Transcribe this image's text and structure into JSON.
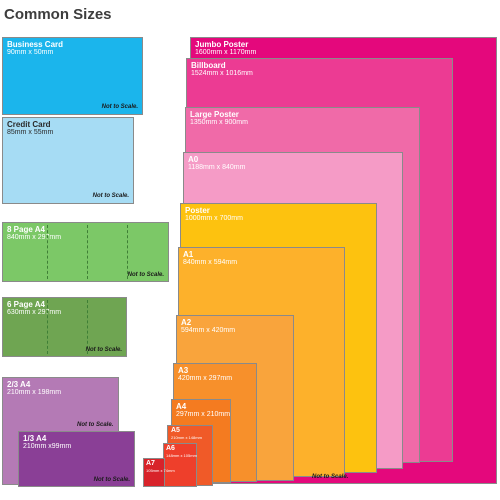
{
  "page_title": "Common Sizes",
  "not_to_scale": "Not to Scale.",
  "left_column": [
    {
      "key": "business_card",
      "name": "Business Card",
      "dims": "90mm x 50mm",
      "color": "#1bb5ec"
    },
    {
      "key": "credit_card",
      "name": "Credit Card",
      "dims": "85mm x 55mm",
      "color": "#a6dcf4"
    },
    {
      "key": "eight_page_a4",
      "name": "8 Page A4",
      "dims": "840mm x 297mm",
      "color": "#7cc867"
    },
    {
      "key": "six_page_a4",
      "name": "6 Page A4",
      "dims": "630mm x 297mm",
      "color": "#6fa552"
    },
    {
      "key": "two_thirds_a4",
      "name": "2/3 A4",
      "dims": "210mm x 198mm",
      "color": "#b47ab5"
    },
    {
      "key": "one_third_a4",
      "name": "1/3 A4",
      "dims": "210mm x99mm",
      "color": "#8a3f96"
    }
  ],
  "stack": [
    {
      "key": "jumbo_poster",
      "name": "Jumbo Poster",
      "dims": "1600mm x 1170mm",
      "color": "#e4087c"
    },
    {
      "key": "billboard",
      "name": "Billboard",
      "dims": "1524mm x 1016mm",
      "color": "#ec3b93"
    },
    {
      "key": "large_poster",
      "name": "Large Poster",
      "dims": "1350mm x 900mm",
      "color": "#f06aa8"
    },
    {
      "key": "a0",
      "name": "A0",
      "dims": "1188mm x 840mm",
      "color": "#f59bc6"
    },
    {
      "key": "poster",
      "name": "Poster",
      "dims": "1000mm x 700mm",
      "color": "#fdc20f"
    },
    {
      "key": "a1",
      "name": "A1",
      "dims": "840mm x 594mm",
      "color": "#fdb12b"
    },
    {
      "key": "a2",
      "name": "A2",
      "dims": "594mm x 420mm",
      "color": "#f9a43c"
    },
    {
      "key": "a3",
      "name": "A3",
      "dims": "420mm x 297mm",
      "color": "#f7902b"
    },
    {
      "key": "a4",
      "name": "A4",
      "dims": "297mm x 210mm",
      "color": "#f47b20"
    },
    {
      "key": "a5",
      "name": "A5",
      "dims": "210mm x 148mm",
      "color": "#f05a28"
    },
    {
      "key": "a6",
      "name": "A6",
      "dims": "148mm x 105mm",
      "color": "#ee3f2b"
    },
    {
      "key": "a7",
      "name": "A7",
      "dims": "105mm x 74mm",
      "color": "#d8232a"
    }
  ]
}
